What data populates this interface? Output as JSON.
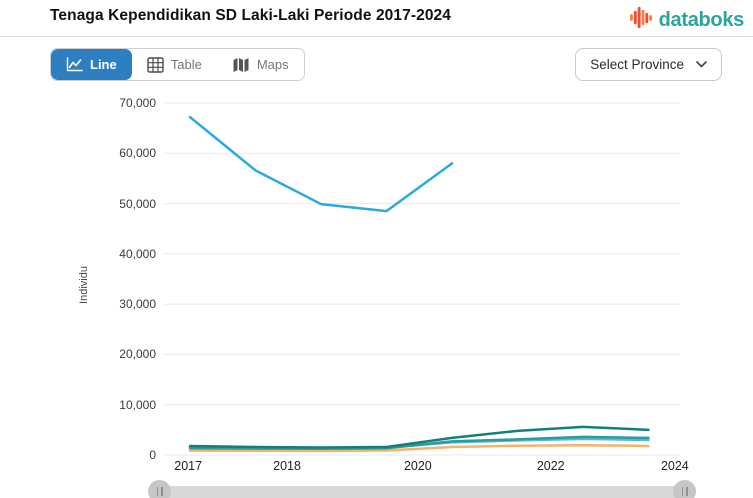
{
  "header": {
    "title": "Tenaga Kependidikan SD Laki-Laki Periode 2017-2024",
    "brand": "databoks",
    "brand_color": "#2aa49e"
  },
  "toolbar": {
    "tabs": [
      {
        "label": "Line",
        "icon": "line-chart-icon",
        "active": true
      },
      {
        "label": "Table",
        "icon": "table-grid-icon",
        "active": false
      },
      {
        "label": "Maps",
        "icon": "folded-map-icon",
        "active": false
      }
    ],
    "active_tab_color": "#2e7fc1",
    "province_dropdown": {
      "label": "Select Province",
      "icon": "chevron-down-icon"
    }
  },
  "chart_data": {
    "type": "line",
    "title": "Tenaga Kependidikan SD Laki-Laki Periode 2017-2024",
    "xlabel": "",
    "ylabel": "Individu",
    "ylim": [
      0,
      70000
    ],
    "yticks": [
      "70,000",
      "60,000",
      "50,000",
      "40,000",
      "30,000",
      "20,000",
      "10,000",
      "0"
    ],
    "xticks": [
      "2017",
      "2018",
      "2020",
      "2022",
      "2024"
    ],
    "x_years": [
      2017,
      2018,
      2019,
      2020,
      2021,
      2022,
      2023,
      2024
    ],
    "grid": "horizontal-only",
    "legend": "none",
    "series": [
      {
        "name": "main-blue",
        "color": "#29a9e2",
        "values": [
          67200,
          56600,
          49900,
          48500,
          58000,
          null,
          null,
          null
        ]
      },
      {
        "name": "dark-teal",
        "color": "#12807a",
        "values": [
          1800,
          1600,
          1500,
          1600,
          3400,
          4800,
          5600,
          5000
        ]
      },
      {
        "name": "teal",
        "color": "#2a9d94",
        "values": [
          1350,
          1300,
          1250,
          1350,
          2700,
          3100,
          3600,
          3400
        ]
      },
      {
        "name": "light-blue",
        "color": "#55b7e6",
        "values": [
          1550,
          1450,
          1400,
          1500,
          2500,
          2900,
          3200,
          3000
        ]
      },
      {
        "name": "orange",
        "color": "#f8b267",
        "values": [
          870,
          850,
          830,
          900,
          1600,
          1850,
          1950,
          1800
        ]
      }
    ]
  },
  "navigator": {
    "type": "range-slider",
    "handles": 2
  }
}
